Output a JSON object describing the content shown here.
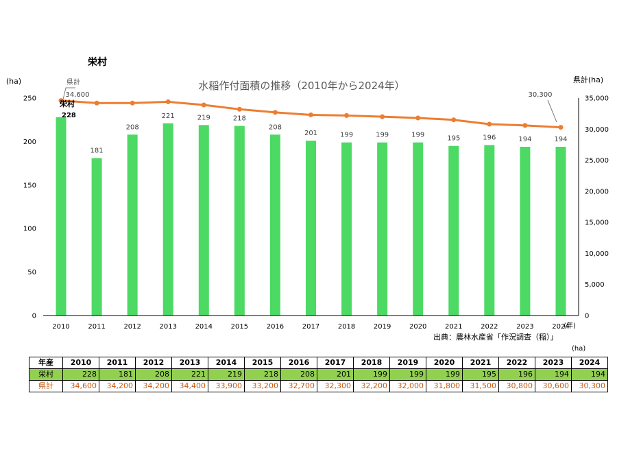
{
  "heading": "栄村",
  "source_note": "出典：農林水産省「作況調査（稲）」",
  "table_unit": "(ha)",
  "table": {
    "header_label": "年産",
    "village_label": "栄村",
    "pref_label": "県計"
  },
  "chart_data": {
    "type": "bar+line",
    "title": "水稲作付面積の推移（2010年から2024年）",
    "categories": [
      "2010",
      "2011",
      "2012",
      "2013",
      "2014",
      "2015",
      "2016",
      "2017",
      "2018",
      "2019",
      "2020",
      "2021",
      "2022",
      "2023",
      "2024"
    ],
    "series": [
      {
        "name": "栄村",
        "type": "bar",
        "axis": "left",
        "color": "#4cd964",
        "values": [
          228,
          181,
          208,
          221,
          219,
          218,
          208,
          201,
          199,
          199,
          199,
          195,
          196,
          194,
          194
        ]
      },
      {
        "name": "県計",
        "type": "line",
        "axis": "right",
        "color": "#ed7d31",
        "values": [
          34600,
          34200,
          34200,
          34400,
          33900,
          33200,
          32700,
          32300,
          32200,
          32000,
          31800,
          31500,
          30800,
          30600,
          30300
        ]
      }
    ],
    "left_axis": {
      "unit": "(ha)",
      "ylim": [
        0,
        250
      ],
      "ticks": [
        0,
        50,
        100,
        150,
        200,
        250
      ]
    },
    "right_axis": {
      "unit": "県計(ha)",
      "ylim": [
        0,
        35000
      ],
      "ticks": [
        0,
        5000,
        10000,
        15000,
        20000,
        25000,
        30000,
        35000
      ]
    },
    "x_unit": "(年)",
    "annotations": {
      "pref_label": "県計",
      "pref_first": "34,600",
      "pref_last": "30,300",
      "village_label": "栄村",
      "village_first": "228"
    }
  }
}
